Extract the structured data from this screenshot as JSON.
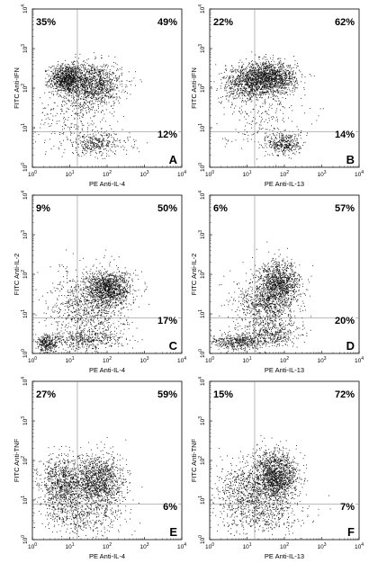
{
  "chart_data": [
    {
      "type": "scatter",
      "panel": "A",
      "xlabel": "PE Anti-IL-4",
      "ylabel": "FITC Anti-IFN",
      "xscale": "log",
      "yscale": "log",
      "xlim": [
        1,
        10000
      ],
      "ylim": [
        1,
        10000
      ],
      "xticks": [
        "10",
        "10",
        "10",
        "10",
        "10"
      ],
      "xtick_exponents": [
        "0",
        "1",
        "2",
        "3",
        "4"
      ],
      "yticks": [
        "10",
        "10",
        "10",
        "10",
        "10"
      ],
      "ytick_exponents": [
        "0",
        "1",
        "2",
        "3",
        "4"
      ],
      "quadrant_gates": {
        "x": 16,
        "y": 8
      },
      "quadrant_percentages": {
        "upper_left": "35%",
        "upper_right": "49%",
        "lower_right": "12%"
      },
      "clusters": [
        {
          "log_center": [
            0.9,
            2.25
          ],
          "log_spread": [
            0.22,
            0.18
          ],
          "count": 900
        },
        {
          "log_center": [
            1.6,
            2.1
          ],
          "log_spread": [
            0.4,
            0.28
          ],
          "count": 1200
        },
        {
          "log_center": [
            1.1,
            1.3
          ],
          "log_spread": [
            0.5,
            0.4
          ],
          "count": 250
        },
        {
          "log_center": [
            1.7,
            0.6
          ],
          "log_spread": [
            0.45,
            0.15
          ],
          "count": 350
        }
      ]
    },
    {
      "type": "scatter",
      "panel": "B",
      "xlabel": "PE Anti-IL-13",
      "ylabel": "FITC Anti-IFN",
      "xscale": "log",
      "yscale": "log",
      "xlim": [
        1,
        10000
      ],
      "ylim": [
        1,
        10000
      ],
      "xticks": [
        "10",
        "10",
        "10",
        "10",
        "10"
      ],
      "xtick_exponents": [
        "0",
        "1",
        "2",
        "3",
        "4"
      ],
      "yticks": [
        "10",
        "10",
        "10",
        "10",
        "10"
      ],
      "ytick_exponents": [
        "0",
        "1",
        "2",
        "3",
        "4"
      ],
      "quadrant_gates": {
        "x": 16,
        "y": 8
      },
      "quadrant_percentages": {
        "upper_left": "22%",
        "upper_right": "62%",
        "lower_right": "14%"
      },
      "clusters": [
        {
          "log_center": [
            1.55,
            2.25
          ],
          "log_spread": [
            0.38,
            0.2
          ],
          "count": 1600
        },
        {
          "log_center": [
            0.9,
            2.1
          ],
          "log_spread": [
            0.3,
            0.25
          ],
          "count": 500
        },
        {
          "log_center": [
            2.0,
            0.6
          ],
          "log_spread": [
            0.22,
            0.15
          ],
          "count": 350
        },
        {
          "log_center": [
            1.4,
            1.2
          ],
          "log_spread": [
            0.55,
            0.4
          ],
          "count": 200
        }
      ]
    },
    {
      "type": "scatter",
      "panel": "C",
      "xlabel": "PE Anti-IL-4",
      "ylabel": "FITC Anti-IL-2",
      "xscale": "log",
      "yscale": "log",
      "xlim": [
        1,
        10000
      ],
      "ylim": [
        1,
        10000
      ],
      "xticks": [
        "10",
        "10",
        "10",
        "10",
        "10"
      ],
      "xtick_exponents": [
        "0",
        "1",
        "2",
        "3",
        "4"
      ],
      "yticks": [
        "10",
        "10",
        "10",
        "10",
        "10"
      ],
      "ytick_exponents": [
        "0",
        "1",
        "2",
        "3",
        "4"
      ],
      "quadrant_gates": {
        "x": 16,
        "y": 8
      },
      "quadrant_percentages": {
        "upper_left": "9%",
        "upper_right": "50%",
        "lower_right": "17%"
      },
      "clusters": [
        {
          "log_center": [
            2.05,
            1.65
          ],
          "log_spread": [
            0.3,
            0.22
          ],
          "count": 1100
        },
        {
          "log_center": [
            1.5,
            1.2
          ],
          "log_spread": [
            0.5,
            0.45
          ],
          "count": 900
        },
        {
          "log_center": [
            0.4,
            0.25
          ],
          "log_spread": [
            0.15,
            0.12
          ],
          "count": 300
        },
        {
          "log_center": [
            1.4,
            0.35
          ],
          "log_spread": [
            0.5,
            0.12
          ],
          "count": 400
        }
      ]
    },
    {
      "type": "scatter",
      "panel": "D",
      "xlabel": "PE Anti-IL-13",
      "ylabel": "FITC Anti-IL-2",
      "xscale": "log",
      "yscale": "log",
      "xlim": [
        1,
        10000
      ],
      "ylim": [
        1,
        10000
      ],
      "xticks": [
        "10",
        "10",
        "10",
        "10",
        "10"
      ],
      "xtick_exponents": [
        "0",
        "1",
        "2",
        "3",
        "4"
      ],
      "yticks": [
        "10",
        "10",
        "10",
        "10",
        "10"
      ],
      "ytick_exponents": [
        "0",
        "1",
        "2",
        "3",
        "4"
      ],
      "quadrant_gates": {
        "x": 16,
        "y": 8
      },
      "quadrant_percentages": {
        "upper_left": "6%",
        "upper_right": "57%",
        "lower_right": "20%"
      },
      "clusters": [
        {
          "log_center": [
            1.85,
            1.75
          ],
          "log_spread": [
            0.28,
            0.28
          ],
          "count": 1100
        },
        {
          "log_center": [
            1.5,
            1.2
          ],
          "log_spread": [
            0.4,
            0.38
          ],
          "count": 800
        },
        {
          "log_center": [
            0.8,
            0.3
          ],
          "log_spread": [
            0.4,
            0.1
          ],
          "count": 500
        },
        {
          "log_center": [
            1.7,
            0.5
          ],
          "log_spread": [
            0.35,
            0.15
          ],
          "count": 300
        }
      ]
    },
    {
      "type": "scatter",
      "panel": "E",
      "xlabel": "PE Anti-IL-4",
      "ylabel": "FITC Anti-TNF",
      "xscale": "log",
      "yscale": "log",
      "xlim": [
        1,
        10000
      ],
      "ylim": [
        1,
        10000
      ],
      "xticks": [
        "10",
        "10",
        "10",
        "10",
        "10"
      ],
      "xtick_exponents": [
        "0",
        "1",
        "2",
        "3",
        "4"
      ],
      "yticks": [
        "10",
        "10",
        "10",
        "10",
        "10"
      ],
      "ytick_exponents": [
        "0",
        "1",
        "2",
        "3",
        "4"
      ],
      "quadrant_gates": {
        "x": 16,
        "y": 8
      },
      "quadrant_percentages": {
        "upper_left": "27%",
        "upper_right": "59%",
        "lower_right": "6%"
      },
      "clusters": [
        {
          "log_center": [
            0.8,
            1.4
          ],
          "log_spread": [
            0.3,
            0.35
          ],
          "count": 900
        },
        {
          "log_center": [
            1.75,
            1.45
          ],
          "log_spread": [
            0.35,
            0.35
          ],
          "count": 1300
        },
        {
          "log_center": [
            1.3,
            0.6
          ],
          "log_spread": [
            0.6,
            0.25
          ],
          "count": 400
        }
      ]
    },
    {
      "type": "scatter",
      "panel": "F",
      "xlabel": "PE Anti-IL-13",
      "ylabel": "FITC Anti-TNF",
      "xscale": "log",
      "yscale": "log",
      "xlim": [
        1,
        10000
      ],
      "ylim": [
        1,
        10000
      ],
      "xticks": [
        "10",
        "10",
        "10",
        "10",
        "10"
      ],
      "xtick_exponents": [
        "0",
        "1",
        "2",
        "3",
        "4"
      ],
      "yticks": [
        "10",
        "10",
        "10",
        "10",
        "10"
      ],
      "ytick_exponents": [
        "0",
        "1",
        "2",
        "3",
        "4"
      ],
      "quadrant_gates": {
        "x": 16,
        "y": 8
      },
      "quadrant_percentages": {
        "upper_left": "15%",
        "upper_right": "72%",
        "lower_right": "7%"
      },
      "clusters": [
        {
          "log_center": [
            1.75,
            1.6
          ],
          "log_spread": [
            0.3,
            0.32
          ],
          "count": 1500
        },
        {
          "log_center": [
            1.0,
            1.2
          ],
          "log_spread": [
            0.45,
            0.4
          ],
          "count": 700
        },
        {
          "log_center": [
            1.5,
            0.6
          ],
          "log_spread": [
            0.5,
            0.22
          ],
          "count": 300
        }
      ]
    }
  ]
}
